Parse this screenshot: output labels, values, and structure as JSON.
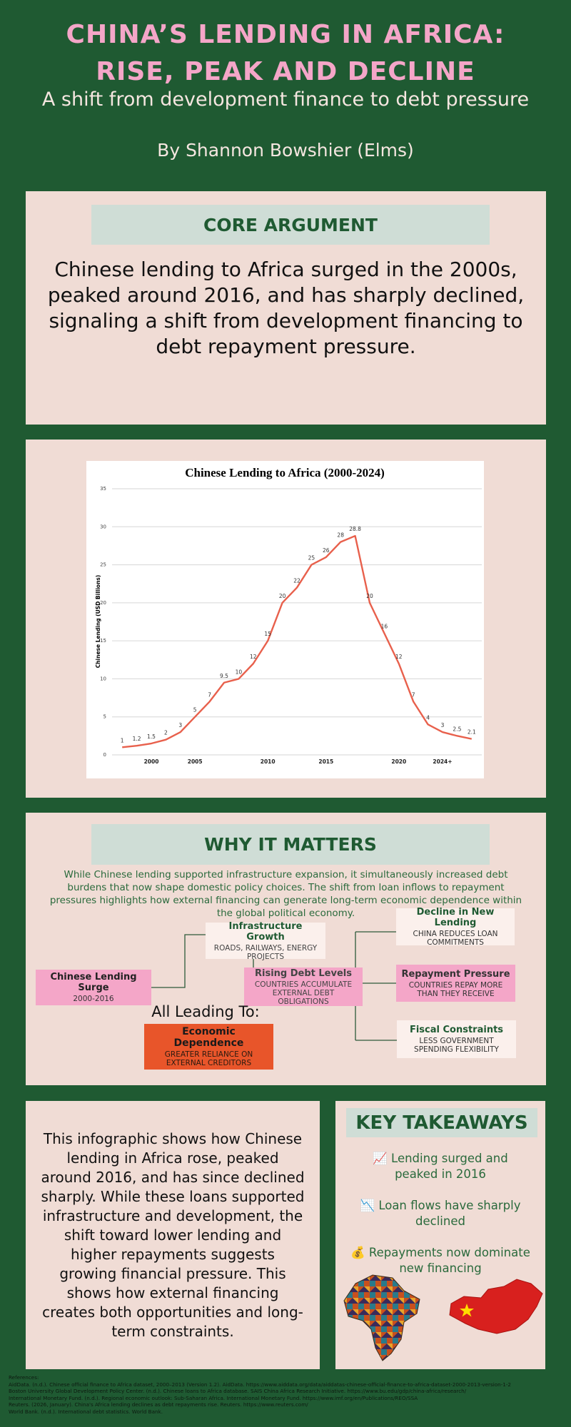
{
  "header": {
    "title_line1": "CHINA’S LENDING IN AFRICA:",
    "title_line2": "RISE, PEAK AND DECLINE",
    "subtitle": "A shift from development finance to debt pressure",
    "byline": "By Shannon Bowshier (Elms)"
  },
  "core_argument": {
    "heading": "CORE ARGUMENT",
    "text": "Chinese lending to Africa surged in the 2000s, peaked around 2016, and has sharply declined, signaling a shift from development financing to debt repayment pressure."
  },
  "chart_data": {
    "type": "line",
    "title": "Chinese Lending to Africa (2000-2024)",
    "y_label": "Chinese Lending (USD Billions)",
    "categories": [
      null,
      null,
      "2000",
      null,
      null,
      "2005",
      null,
      null,
      null,
      null,
      "2010",
      null,
      null,
      null,
      "2015",
      null,
      null,
      null,
      null,
      "2020",
      null,
      null,
      "2024+",
      null,
      null
    ],
    "values": [
      1,
      1.2,
      1.5,
      2,
      3,
      5,
      7,
      9.5,
      10,
      12,
      15,
      20,
      22,
      25,
      26,
      28,
      28.8,
      20,
      16,
      12,
      7,
      4,
      3,
      2.5,
      2.1
    ],
    "color": "#e8604c",
    "ylim": [
      0,
      35
    ],
    "yticks": [
      0,
      5,
      10,
      15,
      20,
      25,
      30,
      35
    ],
    "grid": true
  },
  "why_it_matters": {
    "heading": "WHY IT MATTERS",
    "text": "While Chinese lending supported infrastructure expansion, it simultaneously increased debt burdens that now shape domestic policy choices. The shift from loan inflows to repayment pressures highlights how external financing can generate long-term economic dependence within the global political economy.",
    "nodes": [
      {
        "title": "Chinese Lending Surge",
        "detail": "2000-2016"
      },
      {
        "title": "Infrastructure Growth",
        "detail": "ROADS, RAILWAYS, ENERGY PROJECTS"
      },
      {
        "title": "Rising Debt Levels",
        "detail": "COUNTRIES ACCUMULATE EXTERNAL DEBT OBLIGATIONS"
      },
      {
        "title": "Decline in New Lending",
        "detail": "CHINA REDUCES LOAN COMMITMENTS"
      },
      {
        "title": "Repayment Pressure",
        "detail": "COUNTRIES REPAY MORE THAN THEY RECEIVE"
      },
      {
        "title": "Fiscal Constraints",
        "detail": "LESS GOVERNMENT SPENDING FLEXIBILITY"
      }
    ],
    "leading_to": "All Leading To:",
    "outcome": {
      "title": "Economic Dependence",
      "detail": "GREATER RELIANCE ON EXTERNAL CREDITORS"
    }
  },
  "summary": {
    "text": "This infographic shows how Chinese lending in Africa rose, peaked around 2016, and has since declined sharply. While these loans supported infrastructure and development, the shift toward lower lending and higher repayments suggests growing financial pressure. This shows how external financing creates both opportunities and long-term constraints."
  },
  "key_takeaways": {
    "heading": "KEY TAKEAWAYS",
    "items": [
      {
        "icon": "📈",
        "text": "Lending surged and peaked in 2016"
      },
      {
        "icon": "📉",
        "text": "Loan flows have sharply declined"
      },
      {
        "icon": "💰",
        "text": "Repayments now dominate new financing"
      }
    ]
  },
  "references": {
    "heading": "References:",
    "items": [
      "AidData. (n.d.). Chinese official finance to Africa dataset, 2000–2013 (Version 1.2). AidData. https://www.aiddata.org/data/aiddatas-chinese-official-finance-to-africa-dataset-2000-2013-version-1-2",
      "Boston University Global Development Policy Center. (n.d.). Chinese loans to Africa database. SAIS China Africa Research Initiative. https://www.bu.edu/gdp/china-africa/research/",
      "International Monetary Fund. (n.d.). Regional economic outlook: Sub-Saharan Africa. International Monetary Fund. https://www.imf.org/en/Publications/REO/SSA",
      "Reuters. (2026, January). China's Africa lending declines as debt repayments rise. Reuters. https://www.reuters.com/",
      "World Bank. (n.d.). International debt statistics. World Bank."
    ]
  }
}
